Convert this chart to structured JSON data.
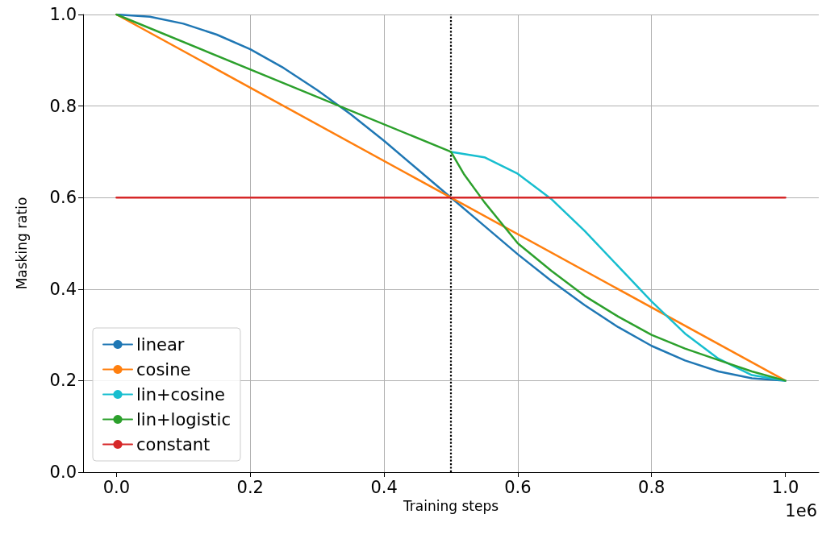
{
  "chart_data": {
    "type": "line",
    "xlabel": "Training steps",
    "ylabel": "Masking ratio",
    "annotations": [
      "1e6"
    ],
    "xlim": [
      -0.05,
      1.05
    ],
    "ylim": [
      0,
      1
    ],
    "xticks": [
      {
        "value": 0,
        "label": "0.0"
      },
      {
        "value": 0.2,
        "label": "0.2"
      },
      {
        "value": 0.4,
        "label": "0.4"
      },
      {
        "value": 0.6,
        "label": "0.6"
      },
      {
        "value": 0.8,
        "label": "0.8"
      },
      {
        "value": 1,
        "label": "1.0"
      }
    ],
    "yticks": [
      {
        "value": 0,
        "label": "0.0"
      },
      {
        "value": 0.2,
        "label": "0.2"
      },
      {
        "value": 0.4,
        "label": "0.4"
      },
      {
        "value": 0.6,
        "label": "0.6"
      },
      {
        "value": 0.8,
        "label": "0.8"
      },
      {
        "value": 1,
        "label": "1.0"
      }
    ],
    "grid": true,
    "legend": "bottom left",
    "marker": "none",
    "line_style": "solid",
    "series": [
      {
        "name": "linear",
        "color": "#1f77b4",
        "x": [
          0,
          0.05,
          0.1,
          0.15,
          0.2,
          0.25,
          0.3,
          0.35,
          0.4,
          0.45,
          0.5,
          0.55,
          0.6,
          0.65,
          0.7,
          0.75,
          0.8,
          0.85,
          0.9,
          0.95,
          1
        ],
        "values": [
          1.0,
          0.995,
          0.98,
          0.956,
          0.924,
          0.883,
          0.835,
          0.782,
          0.724,
          0.662,
          0.6,
          0.538,
          0.476,
          0.418,
          0.365,
          0.317,
          0.276,
          0.244,
          0.22,
          0.205,
          0.2
        ]
      },
      {
        "name": "cosine",
        "color": "#ff7f0e",
        "x": [
          0,
          1
        ],
        "values": [
          1.0,
          0.2
        ]
      },
      {
        "name": "lin+cosine",
        "color": "#17becf",
        "x": [
          0.5,
          0.55,
          0.6,
          0.65,
          0.7,
          0.75,
          0.8,
          0.85,
          0.9,
          0.95,
          1
        ],
        "values": [
          0.7,
          0.688,
          0.652,
          0.597,
          0.527,
          0.45,
          0.373,
          0.303,
          0.248,
          0.212,
          0.2
        ]
      },
      {
        "name": "lin+logistic",
        "color": "#2ca02c",
        "x": [
          0,
          0.5,
          0.52,
          0.55,
          0.6,
          0.65,
          0.7,
          0.75,
          0.8,
          0.85,
          0.9,
          0.95,
          1
        ],
        "values": [
          1.0,
          0.7,
          0.65,
          0.59,
          0.5,
          0.44,
          0.385,
          0.34,
          0.3,
          0.27,
          0.245,
          0.22,
          0.2
        ]
      },
      {
        "name": "constant",
        "color": "#d62728",
        "x": [
          0,
          1
        ],
        "values": [
          0.6,
          0.6
        ]
      }
    ],
    "ref_lines": [
      {
        "axis": "x",
        "value": 0.5,
        "color": "#000000",
        "line_style": "dotted"
      }
    ]
  }
}
